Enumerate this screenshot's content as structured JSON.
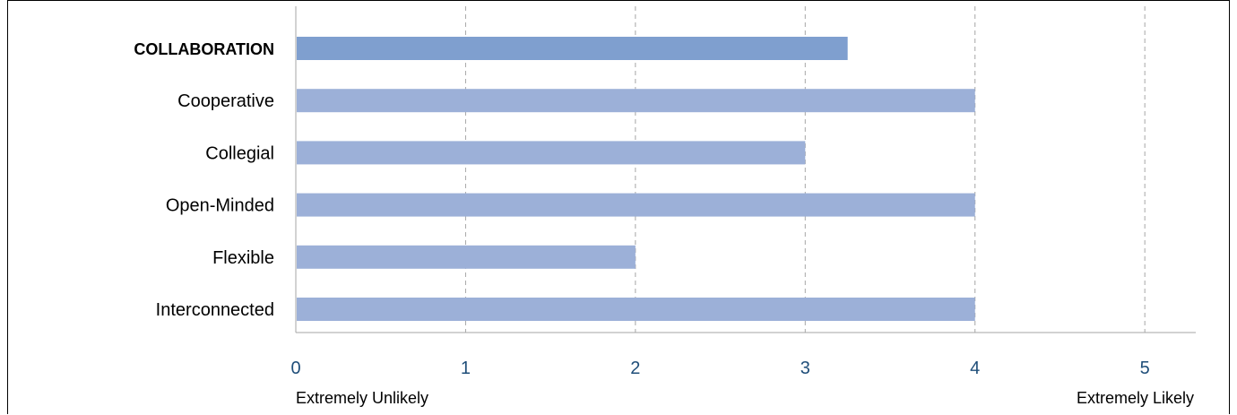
{
  "chart_data": {
    "type": "bar",
    "orientation": "horizontal",
    "categories": [
      "COLLABORATION",
      "Cooperative",
      "Collegial",
      "Open-Minded",
      "Flexible",
      "Interconnected"
    ],
    "values": [
      3.25,
      4,
      3,
      4,
      2,
      4
    ],
    "highlight_category": "COLLABORATION",
    "xlim": [
      0,
      5.3
    ],
    "xticks": [
      0,
      1,
      2,
      3,
      4,
      5
    ],
    "x_anchor_labels": {
      "min": "Extremely Unlikely",
      "max": "Extremely Likely"
    },
    "grid": "vertical-dashed",
    "legend": "none",
    "colors": {
      "highlight_bar": "#7f9fcf",
      "bar": "#9cb0d8",
      "highlight_label": "#7f9fcf",
      "tick_label": "#1f4e79",
      "grid": "#a6a6a6",
      "axis": "#a6a6a6"
    }
  }
}
